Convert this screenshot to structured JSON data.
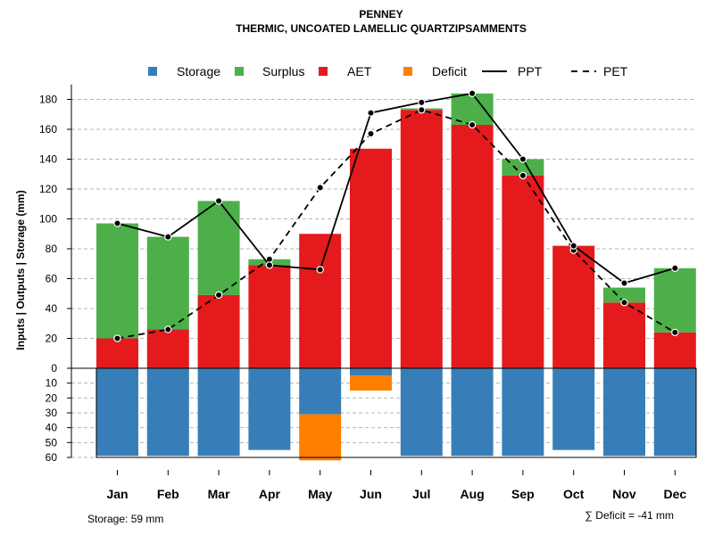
{
  "chart_data": {
    "type": "bar",
    "title": "PENNEY",
    "subtitle": "THERMIC, UNCOATED LAMELLIC QUARTZIPSAMMENTS",
    "ylabel": "Inputs | Outputs | Storage    (mm)",
    "ylim_top": [
      0,
      190
    ],
    "ylim_bottom": [
      0,
      60
    ],
    "yticks_top": [
      "0",
      "20",
      "40",
      "60",
      "80",
      "100",
      "120",
      "140",
      "160",
      "180"
    ],
    "yticks_bottom": [
      "10",
      "20",
      "30",
      "40",
      "50",
      "60"
    ],
    "categories": [
      "Jan",
      "Feb",
      "Mar",
      "Apr",
      "May",
      "Jun",
      "Jul",
      "Aug",
      "Sep",
      "Oct",
      "Nov",
      "Dec"
    ],
    "series": [
      {
        "name": "AET",
        "values": [
          20,
          26,
          49,
          69,
          90,
          147,
          173,
          163,
          129,
          82,
          44,
          24
        ]
      },
      {
        "name": "Surplus",
        "values": [
          77,
          62,
          63,
          4,
          0,
          0,
          1,
          21,
          11,
          0,
          10,
          43
        ]
      },
      {
        "name": "PPT",
        "values": [
          97,
          88,
          112,
          69,
          66,
          171,
          178,
          184,
          140,
          82,
          57,
          67
        ]
      },
      {
        "name": "PET",
        "values": [
          20,
          26,
          49,
          73,
          121,
          157,
          173,
          163,
          129,
          79,
          44,
          24
        ]
      },
      {
        "name": "Storage",
        "values": [
          59,
          59,
          59,
          55,
          31,
          5,
          59,
          59,
          59,
          55,
          59,
          59
        ]
      },
      {
        "name": "Deficit",
        "values": [
          0,
          0,
          0,
          0,
          31,
          10,
          0,
          0,
          0,
          0,
          0,
          0
        ]
      }
    ],
    "legend": [
      {
        "key": "Storage",
        "label": "Storage",
        "color": "#377EB8",
        "kind": "square"
      },
      {
        "key": "Surplus",
        "label": "Surplus",
        "color": "#4DAF4A",
        "kind": "square"
      },
      {
        "key": "AET",
        "label": "AET",
        "color": "#E41A1C",
        "kind": "square"
      },
      {
        "key": "Deficit",
        "label": "Deficit",
        "color": "#FF7F00",
        "kind": "square"
      },
      {
        "key": "PPT",
        "label": "PPT",
        "color": "#000000",
        "kind": "solid"
      },
      {
        "key": "PET",
        "label": "PET",
        "color": "#000000",
        "kind": "dashed"
      }
    ],
    "legend_position": "top",
    "grid": true,
    "storage_note": "Storage: 59 mm",
    "deficit_note": "∑ Deficit = -41 mm"
  }
}
